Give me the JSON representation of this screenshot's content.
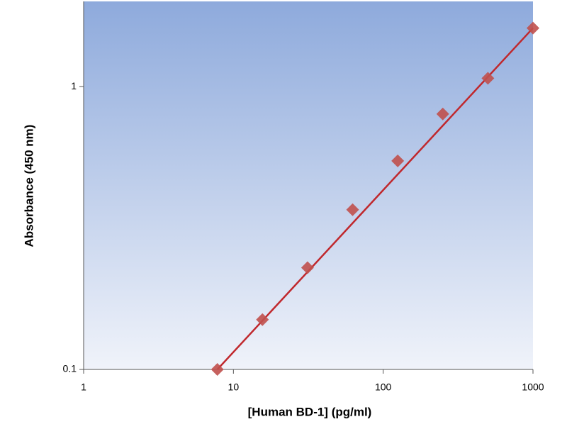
{
  "chart_data": {
    "type": "scatter",
    "x_label": "[Human BD-1] (pg/ml)",
    "y_label": "Absorbance (450 nm)",
    "x": [
      7.8125,
      15.625,
      31.25,
      62.5,
      125,
      250,
      500,
      1000
    ],
    "values": [
      0.1,
      0.15,
      0.229,
      0.367,
      0.546,
      0.8,
      1.07,
      1.61
    ],
    "color": "#c0504d",
    "fit_line": {
      "x": [
        7.8125,
        1000
      ],
      "values": [
        0.1,
        1.61
      ],
      "color": "#c0282d"
    },
    "xlim": [
      1,
      1000
    ],
    "ylim": [
      0.1,
      2
    ],
    "xticks": [
      1,
      10,
      100,
      1000
    ],
    "yticks": [
      0.1,
      1
    ],
    "log_x": true,
    "log_y": true
  }
}
